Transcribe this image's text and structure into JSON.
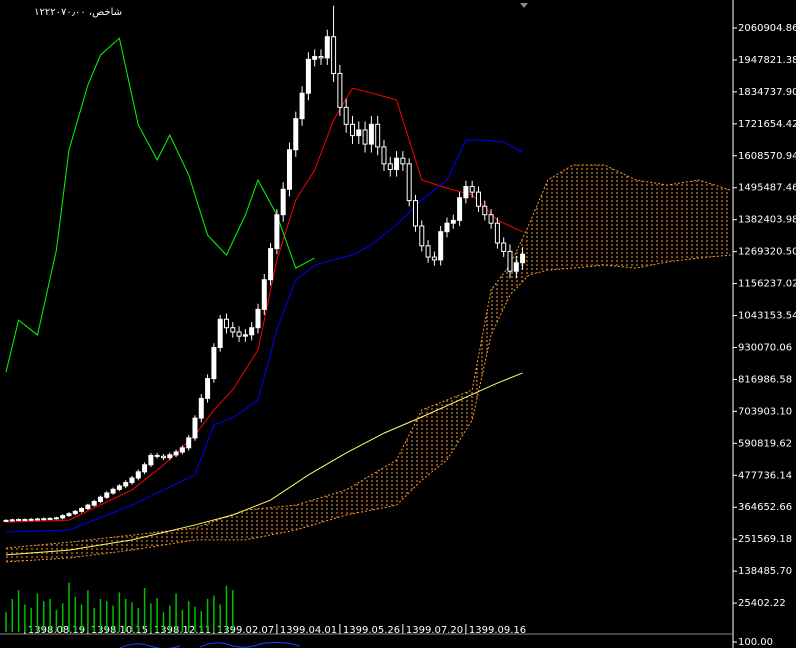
{
  "chart_data": {
    "type": "candlestick",
    "title": "شاخص، ۱۲۲۲۰۷۰٫۰۰",
    "xlim": [
      -0.95,
      115.4
    ],
    "ylim": [
      -77000,
      2160000
    ],
    "yticks": [
      2060904.86,
      1947821.38,
      {
        "value": 1834737.9,
        "label": "1834737.90"
      },
      1721654.42,
      1608570.94,
      1495487.46,
      1382403.98,
      {
        "value": 1269320.5,
        "label": "1269320.50"
      },
      1156237.02,
      1043153.54,
      930070.06,
      816986.58,
      {
        "value": 703903.1,
        "label": "703903.10"
      },
      590819.62,
      477736.14,
      364652.66,
      251569.18,
      {
        "value": 138485.7,
        "label": "138485.70"
      },
      25402.22
    ],
    "xticks": [
      {
        "value": 3,
        "label": "1398.08.19"
      },
      {
        "value": 13,
        "label": "1398.10.15"
      },
      {
        "value": 23,
        "label": "1398.12.11"
      },
      {
        "value": 33,
        "label": "1399.02.07"
      },
      {
        "value": 43,
        "label": "1399.04.01"
      },
      {
        "value": 53,
        "label": "1399.05.26"
      },
      {
        "value": 63,
        "label": "1399.07.20"
      },
      {
        "value": 73,
        "label": "1399.09.16"
      }
    ],
    "up_color": "#ffffff",
    "down_color": "#000000",
    "wick_color": "#ffffff",
    "open": [
      316000,
      318000,
      320000,
      321000,
      320000,
      322000,
      323000,
      324000,
      325000,
      327000,
      335000,
      342000,
      350000,
      360000,
      372000,
      385000,
      400000,
      415000,
      428000,
      440000,
      452000,
      468000,
      490000,
      515000,
      548000,
      545000,
      540000,
      550000,
      560000,
      575000,
      610000,
      680000,
      750000,
      820000,
      930000,
      1030000,
      1000000,
      985000,
      970000,
      975000,
      1000000,
      1065000,
      1170000,
      1280000,
      1400000,
      1490000,
      1630000,
      1740000,
      1830000,
      1950000,
      1960000,
      1955000,
      2030000,
      1900000,
      1780000,
      1720000,
      1680000,
      1700000,
      1650000,
      1720000,
      1640000,
      1580000,
      1560000,
      1600000,
      1580000,
      1450000,
      1360000,
      1290000,
      1250000,
      1240000,
      1340000,
      1370000,
      1380000,
      1460000,
      1500000,
      1480000,
      1430000,
      1400000,
      1370000,
      1300000,
      1270000,
      1200000,
      1230000
    ],
    "high": [
      322000,
      324000,
      325000,
      325000,
      326000,
      327000,
      328000,
      329000,
      331000,
      340000,
      347000,
      355000,
      365000,
      377000,
      391000,
      406000,
      421000,
      434000,
      446000,
      460000,
      476000,
      498000,
      523000,
      556000,
      556000,
      553000,
      558000,
      568000,
      583000,
      620000,
      690000,
      765000,
      835000,
      945000,
      1045000,
      1050000,
      1020000,
      1005000,
      995000,
      1020000,
      1085000,
      1190000,
      1300000,
      1420000,
      1515000,
      1655000,
      1765000,
      1855000,
      1975000,
      1985000,
      1985000,
      2055000,
      2140000,
      1930000,
      1810000,
      1750000,
      1730000,
      1730000,
      1750000,
      1750000,
      1665000,
      1605000,
      1625000,
      1625000,
      1600000,
      1470000,
      1380000,
      1310000,
      1270000,
      1360000,
      1390000,
      1400000,
      1480000,
      1520000,
      1520000,
      1500000,
      1450000,
      1420000,
      1390000,
      1320000,
      1295000,
      1255000,
      1285000
    ],
    "low": [
      312000,
      314000,
      316000,
      316000,
      316000,
      318000,
      319000,
      320000,
      321000,
      322000,
      330000,
      337000,
      345000,
      355000,
      366000,
      379000,
      394000,
      409000,
      422000,
      432000,
      444000,
      460000,
      482000,
      507000,
      537000,
      532000,
      532000,
      542000,
      552000,
      565000,
      600000,
      665000,
      735000,
      805000,
      915000,
      980000,
      965000,
      950000,
      950000,
      955000,
      980000,
      1045000,
      1150000,
      1260000,
      1375000,
      1465000,
      1605000,
      1715000,
      1805000,
      1925000,
      1930000,
      1930000,
      1870000,
      1750000,
      1690000,
      1650000,
      1650000,
      1620000,
      1620000,
      1610000,
      1555000,
      1535000,
      1535000,
      1555000,
      1430000,
      1340000,
      1270000,
      1230000,
      1220000,
      1220000,
      1320000,
      1350000,
      1360000,
      1440000,
      1460000,
      1410000,
      1380000,
      1350000,
      1280000,
      1250000,
      1175000,
      1175000,
      1205000
    ],
    "close": [
      318000,
      320000,
      321000,
      320000,
      322000,
      323000,
      324000,
      325000,
      327000,
      335000,
      342000,
      350000,
      360000,
      372000,
      385000,
      400000,
      415000,
      428000,
      440000,
      452000,
      468000,
      490000,
      515000,
      548000,
      545000,
      540000,
      550000,
      560000,
      575000,
      610000,
      680000,
      750000,
      820000,
      930000,
      1030000,
      1000000,
      985000,
      970000,
      975000,
      1000000,
      1065000,
      1170000,
      1280000,
      1400000,
      1490000,
      1630000,
      1740000,
      1830000,
      1950000,
      1960000,
      1955000,
      2030000,
      1900000,
      1780000,
      1720000,
      1680000,
      1700000,
      1650000,
      1720000,
      1640000,
      1580000,
      1560000,
      1600000,
      1580000,
      1450000,
      1360000,
      1290000,
      1250000,
      1240000,
      1340000,
      1370000,
      1380000,
      1460000,
      1500000,
      1480000,
      1430000,
      1400000,
      1370000,
      1300000,
      1270000,
      1200000,
      1230000,
      1260000
    ],
    "lines": [
      {
        "color": "#ff0000",
        "x": [
          0,
          10,
          20,
          25,
          30,
          33,
          36,
          40,
          43,
          46,
          49,
          52,
          55,
          58,
          62,
          66,
          70,
          74,
          78,
          82
        ],
        "values": [
          312000,
          319000,
          426000,
          514000,
          620000,
          709000,
          780000,
          921000,
          1240000,
          1452000,
          1558000,
          1735000,
          1848000,
          1831000,
          1806000,
          1523000,
          1494000,
          1470000,
          1381000,
          1339000
        ]
      },
      {
        "color": "#0000ff",
        "x": [
          0,
          10,
          20,
          25,
          30,
          33,
          36,
          40,
          43,
          46,
          49,
          52,
          55,
          58,
          62,
          66,
          70,
          73,
          76,
          79,
          82
        ],
        "values": [
          277000,
          284000,
          372000,
          426000,
          479000,
          656000,
          681000,
          744000,
          992000,
          1169000,
          1222000,
          1240000,
          1257000,
          1293000,
          1364000,
          1452000,
          1523000,
          1664000,
          1664000,
          1657000,
          1622000
        ]
      },
      {
        "color": "#00ff00",
        "x": [
          0,
          2,
          5,
          8,
          10,
          13,
          15,
          18,
          21,
          24,
          26,
          29,
          32,
          35,
          38,
          40,
          43,
          46,
          49
        ],
        "values": [
          843000,
          1027000,
          974000,
          1275000,
          1629000,
          1859000,
          1965000,
          2025000,
          1718000,
          1594000,
          1682000,
          1541000,
          1328000,
          1257000,
          1399000,
          1523000,
          1399000,
          1211000,
          1247000
        ]
      },
      {
        "color": "#ffff66",
        "x": [
          0,
          10,
          20,
          30,
          36,
          42,
          48,
          54,
          60,
          66,
          72,
          78,
          82
        ],
        "values": [
          196000,
          213000,
          249000,
          302000,
          337000,
          390000,
          479000,
          557000,
          627000,
          684000,
          744000,
          804000,
          840000
        ]
      }
    ],
    "cloud": {
      "color": "#ff9933",
      "x": [
        0,
        10,
        20,
        30,
        38,
        46,
        54,
        62,
        66,
        70,
        74,
        77,
        80,
        83,
        86,
        90,
        95,
        100,
        105,
        110,
        115
      ],
      "span_a": [
        220000,
        241000,
        266000,
        291000,
        355000,
        372000,
        426000,
        532000,
        709000,
        744000,
        780000,
        1134000,
        1222000,
        1364000,
        1523000,
        1576000,
        1576000,
        1523000,
        1505000,
        1523000,
        1487000
      ],
      "span_b": [
        171000,
        185000,
        213000,
        249000,
        249000,
        284000,
        337000,
        372000,
        461000,
        532000,
        673000,
        974000,
        1116000,
        1187000,
        1204000,
        1211000,
        1222000,
        1211000,
        1233000,
        1247000,
        1257000
      ]
    },
    "volume": {
      "color": "#00c000",
      "ylim": [
        0,
        100
      ],
      "values": [
        18,
        30,
        38,
        25,
        22,
        35,
        28,
        30,
        20,
        26,
        45,
        32,
        25,
        38,
        22,
        30,
        28,
        24,
        36,
        30,
        27,
        22,
        40,
        26,
        31,
        18,
        24,
        35,
        20,
        28,
        23,
        19,
        30,
        33,
        25,
        42,
        38
      ]
    },
    "sub_yticks": [
      {
        "value": 100,
        "label": "100.00"
      }
    ]
  }
}
